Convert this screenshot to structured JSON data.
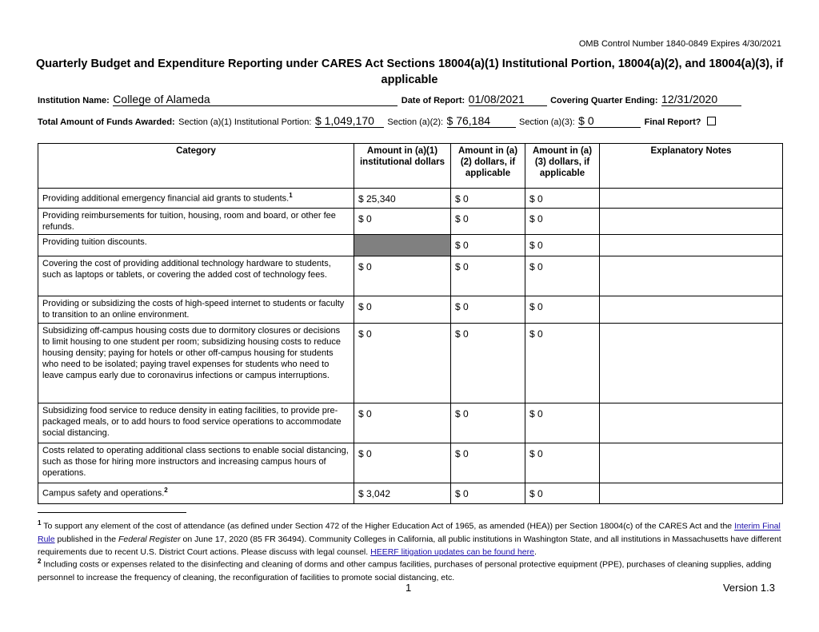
{
  "omb": "OMB Control Number 1840-0849 Expires 4/30/2021",
  "title": "Quarterly Budget and Expenditure Reporting under CARES Act Sections 18004(a)(1) Institutional Portion, 18004(a)(2), and 18004(a)(3), if applicable",
  "header": {
    "institution_label": "Institution Name:",
    "institution_value": "College of Alameda",
    "date_label": "Date of Report:",
    "date_value": "01/08/2021",
    "quarter_label": "Covering Quarter Ending:",
    "quarter_value": "12/31/2020",
    "total_label": "Total Amount of Funds Awarded:",
    "a1_label": "Section (a)(1) Institutional Portion:",
    "a1_value": "$ 1,049,170",
    "a2_label": "Section (a)(2):",
    "a2_value": "$ 76,184",
    "a3_label": "Section (a)(3):",
    "a3_value": "$ 0",
    "final_label": "Final Report?"
  },
  "table": {
    "headers": [
      "Category",
      "Amount in (a)(1) institutional dollars",
      "Amount in (a)(2) dollars, if applicable",
      "Amount in (a)(3) dollars, if applicable",
      "Explanatory Notes"
    ],
    "rows": [
      {
        "category": "Providing additional emergency financial aid grants to students.",
        "sup": "1",
        "a1": "$ 25,340",
        "a2": "$ 0",
        "a3": "$ 0",
        "notes": ""
      },
      {
        "category": "Providing reimbursements for tuition, housing, room and board, or other fee refunds.",
        "a1": "$ 0",
        "a2": "$ 0",
        "a3": "$ 0",
        "notes": ""
      },
      {
        "category": "Providing tuition discounts.",
        "a1": "",
        "a2": "$ 0",
        "a3": "$ 0",
        "notes": ""
      },
      {
        "category": "Covering the cost of providing additional technology hardware to students, such as laptops or tablets, or covering the added cost of technology fees.",
        "a1": "$ 0",
        "a2": "$ 0",
        "a3": "$ 0",
        "notes": ""
      },
      {
        "category": "Providing or subsidizing the costs of high-speed internet to students or faculty to transition to an online environment.",
        "a1": "$ 0",
        "a2": "$ 0",
        "a3": "$ 0",
        "notes": ""
      },
      {
        "category": "Subsidizing off-campus housing costs due to dormitory closures or decisions to limit housing to one student per room; subsidizing housing costs to reduce housing density; paying for hotels or other off-campus housing for students who need to be isolated; paying travel expenses for students who need to leave campus early due to coronavirus infections or campus interruptions.",
        "a1": "$ 0",
        "a2": "$ 0",
        "a3": "$ 0",
        "notes": ""
      },
      {
        "category": "Subsidizing food service to reduce density in eating facilities, to provide pre-packaged meals, or to add hours to food service operations to accommodate social distancing.",
        "a1": "$ 0",
        "a2": "$ 0",
        "a3": "$ 0",
        "notes": ""
      },
      {
        "category": "Costs related to operating additional class sections to enable social distancing, such as those for hiring more instructors and increasing campus hours of operations.",
        "a1": "$ 0",
        "a2": "$ 0",
        "a3": "$ 0",
        "notes": ""
      },
      {
        "category": "Campus safety and operations.",
        "sup": "2",
        "a1": "$ 3,042",
        "a2": "$ 0",
        "a3": "$ 0",
        "notes": ""
      }
    ]
  },
  "footnotes": {
    "fn1_num": "1",
    "fn1_a": "To support any element of the cost of attendance (as defined under Section 472 of the Higher Education Act of 1965, as amended (HEA)) per Section 18004(c) of the CARES Act and the ",
    "fn1_link1": "Interim Final Rule",
    "fn1_b": " published in the ",
    "fn1_italic": "Federal Register",
    "fn1_c": " on June 17, 2020 (85 FR 36494). Community Colleges in California, all public institutions in Washington State, and all institutions in Massachusetts have different requirements due to recent U.S. District Court actions. Please discuss with legal counsel. ",
    "fn1_link2": "HEERF litigation updates can be found here",
    "fn1_end": ".",
    "fn2_num": "2",
    "fn2": "Including costs or expenses related to the disinfecting and cleaning of dorms and other campus facilities, purchases of personal protective equipment (PPE), purchases of cleaning supplies, adding personnel to increase the frequency of cleaning, the reconfiguration of facilities to promote social distancing, etc."
  },
  "page_number": "1",
  "version": "Version 1.3"
}
